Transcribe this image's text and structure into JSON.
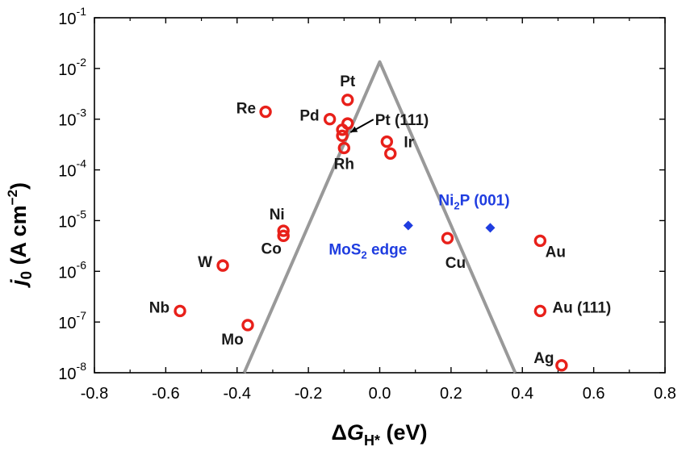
{
  "chart_data": {
    "type": "scatter",
    "xlabel": {
      "prefix": "Δ",
      "var": "G",
      "sub": "H*",
      "unit": " (eV)"
    },
    "ylabel": {
      "var": "j",
      "sub": "0",
      "unit_pre": " (A cm",
      "unit_sup": "−2",
      "unit_post": ")"
    },
    "xlim": [
      -0.8,
      0.8
    ],
    "ylim_log10": [
      -8,
      -1
    ],
    "yscale": "log",
    "grid": false,
    "x_ticks": [
      -0.8,
      -0.6,
      -0.4,
      -0.2,
      0.0,
      0.2,
      0.4,
      0.6,
      0.8
    ],
    "x_tick_labels": [
      "-0.8",
      "-0.6",
      "-0.4",
      "-0.2",
      "0.0",
      "0.2",
      "0.4",
      "0.6",
      "0.8"
    ],
    "y_tick_exponents": [
      "-1",
      "-2",
      "-3",
      "-4",
      "-5",
      "-6",
      "-7",
      "-8"
    ],
    "y_tick_base": "10",
    "volcano_curve": {
      "color": "#999999",
      "points": [
        [
          -0.38,
          1e-08
        ],
        [
          0.0,
          0.0135
        ],
        [
          0.38,
          1e-08
        ]
      ]
    },
    "series": [
      {
        "marker": "open-circle",
        "color": "#e8201a",
        "points": [
          {
            "label": "Pt",
            "x": -0.09,
            "y": 0.0024
          },
          {
            "label": "Re",
            "x": -0.32,
            "y": 0.0014
          },
          {
            "label": "Pd",
            "x": -0.14,
            "y": 0.001
          },
          {
            "label": "Pt (111)",
            "x": -0.09,
            "y": 0.00082
          },
          {
            "label": "",
            "x": -0.105,
            "y": 0.00062
          },
          {
            "label": "",
            "x": -0.105,
            "y": 0.00047
          },
          {
            "label": "Rh",
            "x": -0.1,
            "y": 0.00027
          },
          {
            "label": "Ir",
            "x": 0.02,
            "y": 0.00036
          },
          {
            "label": "",
            "x": 0.03,
            "y": 0.00021
          },
          {
            "label": "Ni",
            "x": -0.27,
            "y": 6.3e-06
          },
          {
            "label": "Co",
            "x": -0.27,
            "y": 5e-06
          },
          {
            "label": "W",
            "x": -0.44,
            "y": 1.3e-06
          },
          {
            "label": "Nb",
            "x": -0.56,
            "y": 1.65e-07
          },
          {
            "label": "Mo",
            "x": -0.37,
            "y": 8.7e-08
          },
          {
            "label": "Cu",
            "x": 0.19,
            "y": 4.5e-06
          },
          {
            "label": "Au",
            "x": 0.45,
            "y": 4e-06
          },
          {
            "label": "Au (111)",
            "x": 0.45,
            "y": 1.65e-07
          },
          {
            "label": "Ag",
            "x": 0.51,
            "y": 1.4e-08
          }
        ]
      },
      {
        "marker": "diamond",
        "color": "#1f3de0",
        "points": [
          {
            "label": "MoS",
            "label_sub": "2",
            "label_post": " edge",
            "x": 0.08,
            "y": 8e-06
          },
          {
            "label": "Ni",
            "label_sub": "2",
            "label_post": "P (001)",
            "x": 0.31,
            "y": 7.2e-06
          }
        ]
      }
    ]
  }
}
